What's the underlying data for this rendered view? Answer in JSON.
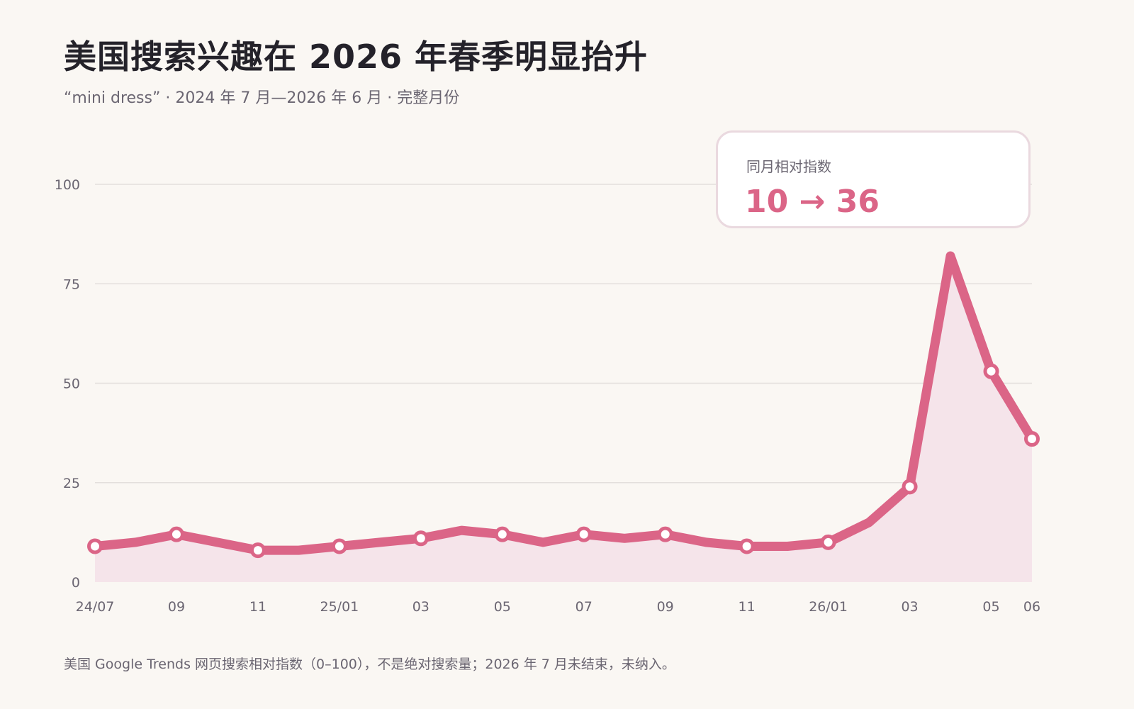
{
  "title": "美国搜索兴趣在 2026 年春季明显抬升",
  "subtitle": "“mini dress” · 2024 年 7 月—2026 年 6 月 · 完整月份",
  "callout": {
    "label": "同月相对指数",
    "value": "10 → 36"
  },
  "footnote": "美国 Google Trends 网页搜索相对指数（0–100），不是绝对搜索量；2026 年 7 月未结束，未纳入。",
  "colors": {
    "line": "#db6587",
    "area": "#f5e4ea",
    "grid": "#e3dfdc",
    "text": "#6b6672",
    "title": "#24222a",
    "background": "#faf7f3"
  },
  "chart_data": {
    "type": "area",
    "x": [
      "2024-07",
      "2024-08",
      "2024-09",
      "2024-10",
      "2024-11",
      "2024-12",
      "2025-01",
      "2025-02",
      "2025-03",
      "2025-04",
      "2025-05",
      "2025-06",
      "2025-07",
      "2025-08",
      "2025-09",
      "2025-10",
      "2025-11",
      "2025-12",
      "2026-01",
      "2026-02",
      "2026-03",
      "2026-04",
      "2026-05",
      "2026-06"
    ],
    "values": [
      9,
      10,
      12,
      10,
      8,
      8,
      9,
      10,
      11,
      13,
      12,
      10,
      12,
      11,
      12,
      10,
      9,
      9,
      10,
      15,
      24,
      82,
      53,
      36
    ],
    "marked_points": [
      0,
      2,
      4,
      6,
      8,
      10,
      12,
      14,
      16,
      18,
      20,
      22,
      23
    ],
    "x_tick_labels": [
      {
        "index": 0,
        "label": "24/07"
      },
      {
        "index": 2,
        "label": "09"
      },
      {
        "index": 4,
        "label": "11"
      },
      {
        "index": 6,
        "label": "25/01"
      },
      {
        "index": 8,
        "label": "03"
      },
      {
        "index": 10,
        "label": "05"
      },
      {
        "index": 12,
        "label": "07"
      },
      {
        "index": 14,
        "label": "09"
      },
      {
        "index": 16,
        "label": "11"
      },
      {
        "index": 18,
        "label": "26/01"
      },
      {
        "index": 20,
        "label": "03"
      },
      {
        "index": 22,
        "label": "05"
      },
      {
        "index": 23,
        "label": "06"
      }
    ],
    "y_ticks": [
      0,
      25,
      50,
      75,
      100
    ],
    "ylim": [
      0,
      100
    ],
    "grid": true,
    "xlabel": "",
    "ylabel": ""
  }
}
